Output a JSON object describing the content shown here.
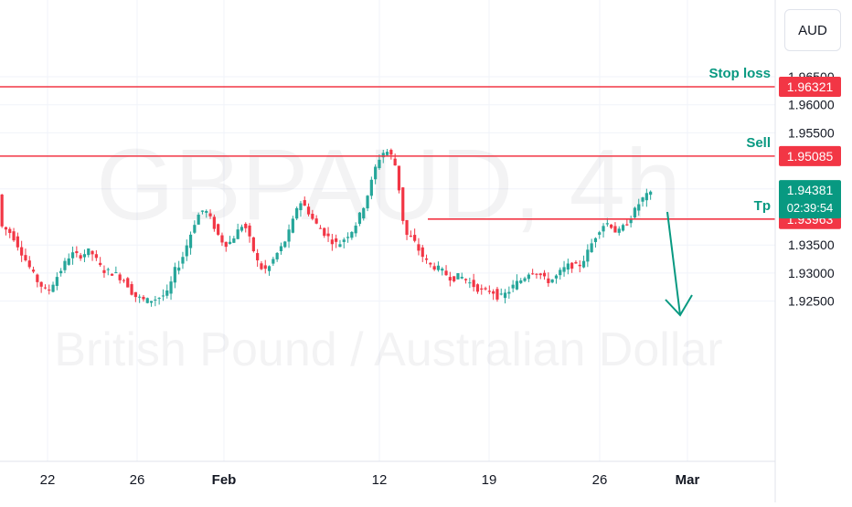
{
  "currency_button": {
    "label": "AUD"
  },
  "watermark": {
    "symbol": "GBPAUD, 4h",
    "description": "British Pound / Australian Dollar"
  },
  "colors": {
    "up": "#26a69a",
    "down": "#f23645",
    "level_line": "#f23645",
    "annotation": "#089981",
    "current_price_bg": "#089981"
  },
  "annotations": [
    {
      "label": "Stop loss",
      "price": 1.96321
    },
    {
      "label": "Sell",
      "price": 1.95085
    },
    {
      "label": "Tp",
      "price": 1.93963
    }
  ],
  "current_price": {
    "value": "1.94381",
    "countdown": "02:39:54"
  },
  "chart_data": {
    "type": "candlestick",
    "instrument": "GBPAUD",
    "timeframe": "4h",
    "y_axis": {
      "position": "right",
      "ticks": [
        "1.96500",
        "1.96000",
        "1.95500",
        "1.94500",
        "1.93500",
        "1.93000",
        "1.92500"
      ],
      "range": [
        1.924,
        1.97
      ]
    },
    "x_axis": {
      "ticks": [
        "22",
        "26",
        "Feb",
        "12",
        "19",
        "26",
        "Mar"
      ]
    },
    "horizontal_levels": [
      {
        "price": 1.96321,
        "label": "1.96321"
      },
      {
        "price": 1.95085,
        "label": "1.95085"
      },
      {
        "price": 1.93963,
        "label": "1.93963"
      }
    ],
    "price_path": [
      [
        0,
        1.9385
      ],
      [
        3,
        1.937
      ],
      [
        6,
        1.933
      ],
      [
        9,
        1.929
      ],
      [
        12,
        1.9265
      ],
      [
        15,
        1.93
      ],
      [
        18,
        1.9335
      ],
      [
        20,
        1.933
      ],
      [
        23,
        1.934
      ],
      [
        26,
        1.9305
      ],
      [
        29,
        1.93
      ],
      [
        32,
        1.9285
      ],
      [
        34,
        1.926
      ],
      [
        37,
        1.925
      ],
      [
        40,
        1.9255
      ],
      [
        43,
        1.9265
      ],
      [
        44,
        1.93
      ],
      [
        46,
        1.932
      ],
      [
        48,
        1.936
      ],
      [
        50,
        1.94
      ],
      [
        52,
        1.9415
      ],
      [
        54,
        1.939
      ],
      [
        56,
        1.936
      ],
      [
        58,
        1.935
      ],
      [
        60,
        1.937
      ],
      [
        62,
        1.939
      ],
      [
        64,
        1.935
      ],
      [
        66,
        1.931
      ],
      [
        68,
        1.9305
      ],
      [
        70,
        1.933
      ],
      [
        72,
        1.935
      ],
      [
        74,
        1.938
      ],
      [
        76,
        1.943
      ],
      [
        78,
        1.9415
      ],
      [
        80,
        1.939
      ],
      [
        82,
        1.9375
      ],
      [
        84,
        1.936
      ],
      [
        86,
        1.935
      ],
      [
        88,
        1.9365
      ],
      [
        90,
        1.938
      ],
      [
        92,
        1.941
      ],
      [
        94,
        1.945
      ],
      [
        96,
        1.95
      ],
      [
        98,
        1.952
      ],
      [
        100,
        1.9505
      ],
      [
        101,
        1.948
      ],
      [
        102,
        1.942
      ],
      [
        103,
        1.937
      ],
      [
        105,
        1.936
      ],
      [
        107,
        1.9335
      ],
      [
        109,
        1.9315
      ],
      [
        111,
        1.931
      ],
      [
        113,
        1.93
      ],
      [
        115,
        1.929
      ],
      [
        117,
        1.9295
      ],
      [
        119,
        1.9285
      ],
      [
        121,
        1.9275
      ],
      [
        123,
        1.9265
      ],
      [
        125,
        1.927
      ],
      [
        127,
        1.9255
      ],
      [
        129,
        1.9265
      ],
      [
        131,
        1.928
      ],
      [
        133,
        1.929
      ],
      [
        135,
        1.9305
      ],
      [
        137,
        1.93
      ],
      [
        139,
        1.9285
      ],
      [
        141,
        1.929
      ],
      [
        143,
        1.9305
      ],
      [
        145,
        1.9315
      ],
      [
        147,
        1.931
      ],
      [
        149,
        1.933
      ],
      [
        151,
        1.936
      ],
      [
        153,
        1.9385
      ],
      [
        155,
        1.939
      ],
      [
        157,
        1.937
      ],
      [
        159,
        1.9385
      ],
      [
        161,
        1.9405
      ],
      [
        163,
        1.943
      ],
      [
        165,
        1.944
      ]
    ]
  }
}
